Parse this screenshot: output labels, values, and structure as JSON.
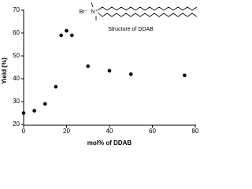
{
  "chart_data": {
    "type": "scatter",
    "x_label": "mol% of DDAB",
    "y_label": "Yield (%)",
    "x": [
      0,
      5,
      10,
      15,
      17.5,
      20,
      22.5,
      30,
      40,
      50,
      75
    ],
    "values": [
      25,
      26,
      29,
      36.5,
      59,
      61,
      59,
      45.5,
      43.5,
      42,
      41.5
    ],
    "color": "#000000",
    "xlim": [
      0,
      80
    ],
    "xticks": [
      0,
      20,
      40,
      60,
      80
    ],
    "ylim": [
      20,
      70
    ],
    "yticks": [
      20,
      30,
      40,
      50,
      60,
      70
    ],
    "grid": false,
    "annotations": [
      "Br⁻",
      "N⁺",
      "Structure of DDAB"
    ]
  }
}
